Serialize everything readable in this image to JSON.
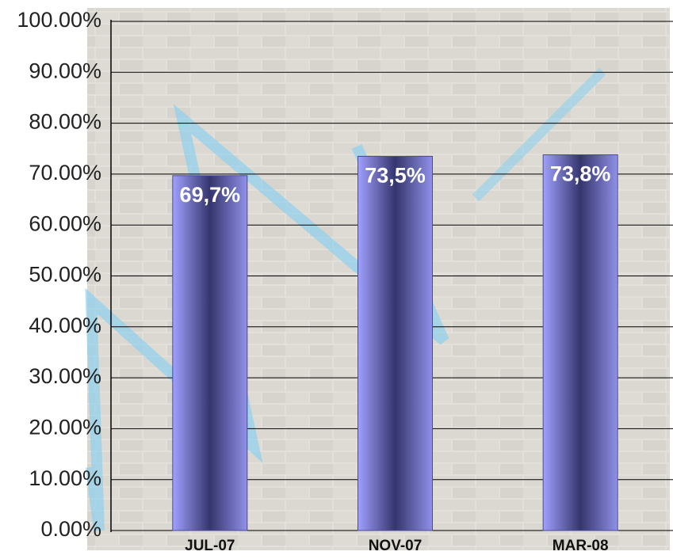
{
  "chart_data": {
    "type": "bar",
    "categories": [
      "JUL-07",
      "NOV-07",
      "MAR-08"
    ],
    "values": [
      69.7,
      73.5,
      73.8
    ],
    "value_labels": [
      "69,7%",
      "73,5%",
      "73,8%"
    ],
    "color": "#4a4a9a",
    "ylim": [
      0,
      100
    ],
    "yticks": [
      {
        "value": 0,
        "label": "0.00%"
      },
      {
        "value": 10,
        "label": "10.00%"
      },
      {
        "value": 20,
        "label": "20.00%"
      },
      {
        "value": 30,
        "label": "30.00%"
      },
      {
        "value": 40,
        "label": "40.00%"
      },
      {
        "value": 50,
        "label": "50.00%"
      },
      {
        "value": 60,
        "label": "60.00%"
      },
      {
        "value": 70,
        "label": "70.00%"
      },
      {
        "value": 80,
        "label": "80.00%"
      },
      {
        "value": 90,
        "label": "90.00%"
      },
      {
        "value": 100,
        "label": "100.00%"
      }
    ],
    "grid": true
  }
}
